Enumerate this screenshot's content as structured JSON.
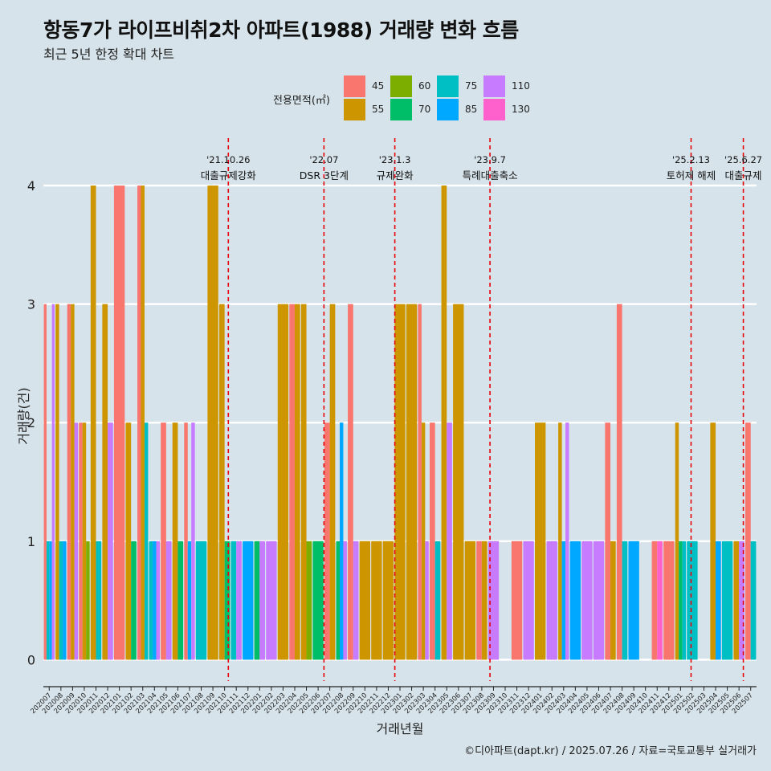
{
  "title": "항동7가 라이프비취2차 아파트(1988) 거래량 변화 흐름",
  "subtitle": "최근 5년 한정 확대 차트",
  "caption": "©디아파트(dapt.kr) / 2025.07.26 / 자료=국토교통부 실거래가",
  "legend": {
    "title": "전용면적(㎡)",
    "items": [
      {
        "label": "45",
        "color": "#F8766D"
      },
      {
        "label": "55",
        "color": "#CD9600"
      },
      {
        "label": "60",
        "color": "#7CAE00"
      },
      {
        "label": "70",
        "color": "#00BE67"
      },
      {
        "label": "75",
        "color": "#00BFC4"
      },
      {
        "label": "85",
        "color": "#00A9FF"
      },
      {
        "label": "110",
        "color": "#C77CFF"
      },
      {
        "label": "130",
        "color": "#FF61CC"
      }
    ]
  },
  "chart_data": {
    "type": "bar",
    "title": "항동7가 라이프비취2차 아파트(1988) 거래량 변화 흐름",
    "xlabel": "거래년월",
    "ylabel": "거래량(건)",
    "ylim": [
      -0.18,
      4.4
    ],
    "yticks": [
      0,
      1,
      2,
      3,
      4
    ],
    "categories": [
      "202007",
      "202008",
      "202009",
      "202010",
      "202011",
      "202012",
      "202101",
      "202102",
      "202103",
      "202104",
      "202105",
      "202106",
      "202107",
      "202108",
      "202109",
      "202110",
      "202111",
      "202112",
      "202201",
      "202202",
      "202203",
      "202204",
      "202205",
      "202206",
      "202207",
      "202208",
      "202209",
      "202210",
      "202211",
      "202212",
      "202301",
      "202302",
      "202303",
      "202304",
      "202305",
      "202306",
      "202307",
      "202308",
      "202309",
      "202310",
      "202311",
      "202312",
      "202401",
      "202402",
      "202403",
      "202404",
      "202405",
      "202406",
      "202407",
      "202408",
      "202409",
      "202410",
      "202411",
      "202412",
      "202501",
      "202502",
      "202503",
      "202504",
      "202505",
      "202506",
      "202507"
    ],
    "series": [
      {
        "name": "45",
        "values": [
          3,
          0,
          3,
          2,
          0,
          0,
          4,
          0,
          4,
          0,
          2,
          0,
          2,
          0,
          0,
          0,
          0,
          0,
          0,
          0,
          0,
          3,
          0,
          0,
          2,
          0,
          3,
          0,
          0,
          0,
          0,
          0,
          3,
          2,
          0,
          0,
          0,
          1,
          0,
          0,
          1,
          0,
          0,
          0,
          0,
          0,
          0,
          0,
          2,
          3,
          0,
          0,
          1,
          1,
          0,
          0,
          0,
          0,
          0,
          0,
          2
        ]
      },
      {
        "name": "55",
        "values": [
          0,
          3,
          3,
          2,
          4,
          3,
          0,
          2,
          4,
          0,
          0,
          2,
          0,
          0,
          4,
          3,
          0,
          0,
          0,
          0,
          3,
          3,
          3,
          0,
          3,
          0,
          0,
          1,
          1,
          1,
          3,
          3,
          2,
          0,
          4,
          3,
          1,
          1,
          0,
          0,
          0,
          0,
          2,
          0,
          2,
          0,
          0,
          0,
          1,
          0,
          0,
          0,
          0,
          0,
          2,
          0,
          0,
          2,
          0,
          1,
          0
        ]
      },
      {
        "name": "60",
        "values": [
          0,
          0,
          0,
          1,
          0,
          0,
          0,
          0,
          0,
          0,
          0,
          0,
          0,
          0,
          0,
          0,
          0,
          0,
          0,
          0,
          0,
          0,
          1,
          0,
          0,
          0,
          0,
          0,
          0,
          0,
          0,
          0,
          0,
          0,
          0,
          0,
          0,
          0,
          0,
          0,
          0,
          0,
          0,
          0,
          0,
          0,
          0,
          0,
          0,
          0,
          0,
          0,
          0,
          0,
          0,
          0,
          0,
          0,
          0,
          0,
          0
        ]
      },
      {
        "name": "70",
        "values": [
          0,
          0,
          0,
          0,
          0,
          0,
          0,
          1,
          0,
          0,
          0,
          1,
          0,
          0,
          0,
          1,
          0,
          0,
          1,
          0,
          0,
          0,
          0,
          1,
          0,
          1,
          0,
          0,
          0,
          0,
          0,
          0,
          0,
          0,
          0,
          0,
          0,
          0,
          0,
          0,
          0,
          0,
          0,
          0,
          0,
          0,
          0,
          0,
          0,
          0,
          0,
          0,
          0,
          0,
          1,
          0,
          0,
          0,
          0,
          0,
          0
        ]
      },
      {
        "name": "75",
        "values": [
          1,
          1,
          0,
          0,
          1,
          0,
          0,
          0,
          2,
          1,
          0,
          0,
          0,
          1,
          0,
          0,
          1,
          0,
          0,
          0,
          0,
          0,
          0,
          0,
          0,
          0,
          0,
          0,
          0,
          0,
          0,
          0,
          0,
          1,
          0,
          0,
          0,
          0,
          0,
          0,
          0,
          0,
          0,
          0,
          0,
          0,
          0,
          0,
          0,
          1,
          0,
          0,
          0,
          0,
          1,
          1,
          0,
          0,
          1,
          0,
          1
        ]
      },
      {
        "name": "85",
        "values": [
          1,
          1,
          0,
          0,
          0,
          0,
          0,
          0,
          0,
          1,
          0,
          0,
          1,
          0,
          0,
          0,
          0,
          1,
          0,
          0,
          0,
          0,
          0,
          0,
          0,
          2,
          0,
          0,
          0,
          0,
          0,
          0,
          0,
          0,
          0,
          0,
          0,
          0,
          0,
          0,
          0,
          0,
          0,
          0,
          1,
          1,
          0,
          0,
          0,
          0,
          1,
          0,
          0,
          0,
          0,
          0,
          0,
          1,
          0,
          0,
          0
        ]
      },
      {
        "name": "110",
        "values": [
          3,
          0,
          2,
          0,
          0,
          2,
          0,
          0,
          0,
          1,
          1,
          0,
          2,
          0,
          0,
          0,
          1,
          0,
          1,
          1,
          0,
          0,
          0,
          0,
          0,
          1,
          1,
          0,
          0,
          0,
          0,
          0,
          1,
          0,
          2,
          0,
          0,
          0,
          1,
          0,
          0,
          1,
          0,
          1,
          2,
          0,
          1,
          1,
          0,
          0,
          0,
          0,
          0,
          0,
          0,
          0,
          0,
          0,
          0,
          1,
          0
        ]
      },
      {
        "name": "130",
        "values": [
          0,
          0,
          0,
          0,
          0,
          0,
          0,
          0,
          0,
          0,
          0,
          0,
          0,
          0,
          0,
          0,
          0,
          0,
          0,
          0,
          0,
          0,
          0,
          0,
          0,
          0,
          0,
          0,
          0,
          0,
          0,
          0,
          0,
          0,
          0,
          0,
          0,
          0,
          0,
          0,
          0,
          0,
          0,
          0,
          0,
          0,
          0,
          0,
          0,
          0,
          0,
          0,
          1,
          0,
          0,
          0,
          0,
          0,
          0,
          0,
          0
        ]
      }
    ],
    "events": [
      {
        "date": "'21.10.26",
        "label": "대출규제강화",
        "month": "202110",
        "frac": 0.82
      },
      {
        "date": "'22.07",
        "label": "DSR 3단계",
        "month": "202207",
        "frac": 0.0
      },
      {
        "date": "'23.1.3",
        "label": "규제완화",
        "month": "202301",
        "frac": 0.06
      },
      {
        "date": "'23.9.7",
        "label": "특례대출축소",
        "month": "202309",
        "frac": 0.2
      },
      {
        "date": "'25.2.13",
        "label": "토허제 해제",
        "month": "202502",
        "frac": 0.4
      },
      {
        "date": "'25.6.27",
        "label": "대출규제",
        "month": "202506",
        "frac": 0.87
      }
    ]
  }
}
